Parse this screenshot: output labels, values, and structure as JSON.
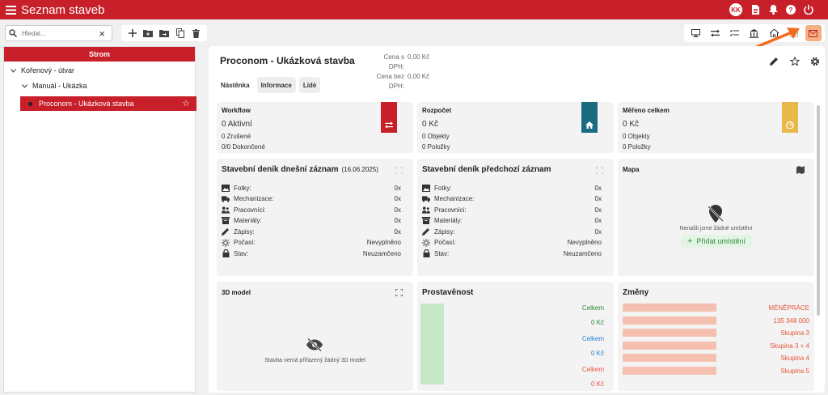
{
  "app": {
    "title": "Seznam staveb",
    "user_initials": "KK"
  },
  "search": {
    "placeholder": "Hledat..."
  },
  "tree": {
    "header": "Strom",
    "items": [
      {
        "label": "Kořenový - útvar"
      },
      {
        "label": "Manuál - Ukázka"
      },
      {
        "label": "Proconom - Ukázková stavba"
      }
    ]
  },
  "project": {
    "title": "Proconom - Ukázková stavba",
    "price_with_vat_label": "Cena s DPH:",
    "price_with_vat": "0,00 Kč",
    "price_without_vat_label": "Cena bez DPH:",
    "price_without_vat": "0,00 Kč"
  },
  "tabs": [
    {
      "label": "Nástěnka"
    },
    {
      "label": "Informace"
    },
    {
      "label": "Lidé"
    }
  ],
  "cards": {
    "workflow": {
      "title": "Workflow",
      "main": "0 Aktivní",
      "line1": "0 Zrušené",
      "line2": "0/0 Dokončené",
      "color": "#c8202a"
    },
    "rozpocet": {
      "title": "Rozpočet",
      "main": "0 Kč",
      "line1": "0 Objekty",
      "line2": "0 Položky",
      "color": "#1a6a80"
    },
    "mereno": {
      "title": "Měřeno celkem",
      "main": "0 Kč",
      "line1": "0 Objekty",
      "line2": "0 Položky",
      "color": "#e8b84a"
    }
  },
  "diary_today": {
    "title": "Stavební deník dnešní záznam",
    "date": "(16.06.2025)",
    "rows": [
      {
        "label": "Fotky:",
        "value": "0x"
      },
      {
        "label": "Mechanizace:",
        "value": "0x"
      },
      {
        "label": "Pracovníci:",
        "value": "0x"
      },
      {
        "label": "Materiály:",
        "value": "0x"
      },
      {
        "label": "Zápisy:",
        "value": "0x"
      },
      {
        "label": "Počasí:",
        "value": "Nevyplněno"
      },
      {
        "label": "Stav:",
        "value": "Neuzamčeno"
      }
    ]
  },
  "diary_prev": {
    "title": "Stavební deník předchozí záznam",
    "rows": [
      {
        "label": "Fotky:",
        "value": "0x"
      },
      {
        "label": "Mechanizace:",
        "value": "0x"
      },
      {
        "label": "Pracovníci:",
        "value": "0x"
      },
      {
        "label": "Materiály:",
        "value": "0x"
      },
      {
        "label": "Zápisy:",
        "value": "0x"
      },
      {
        "label": "Počasí:",
        "value": "Nevyplněno"
      },
      {
        "label": "Stav:",
        "value": "Neuzamčeno"
      }
    ]
  },
  "map": {
    "title": "Mapa",
    "empty": "Nenašli jsme žádné umístění",
    "add_label": "Přidat umístění"
  },
  "model3d": {
    "title": "3D model",
    "empty": "Stavba nemá přiřazený žádný 3D model"
  },
  "prostavenost": {
    "title": "Prostavěnost",
    "rows": [
      {
        "label": "Celkem",
        "value": "0 Kč",
        "color": "#2e8b3a"
      },
      {
        "label": "Celkem",
        "value": "0 Kč",
        "color": "#2a7fd4"
      },
      {
        "label": "Celkem",
        "value": "0 Kč",
        "color": "#e8553a"
      }
    ]
  },
  "zmeny": {
    "title": "Změny",
    "labels": [
      "MÉNĚPRÁCE",
      "135 348 000",
      "Skupina 3",
      "Skupina 3 + 4",
      "Skupina 4",
      "Skupina 5"
    ]
  }
}
